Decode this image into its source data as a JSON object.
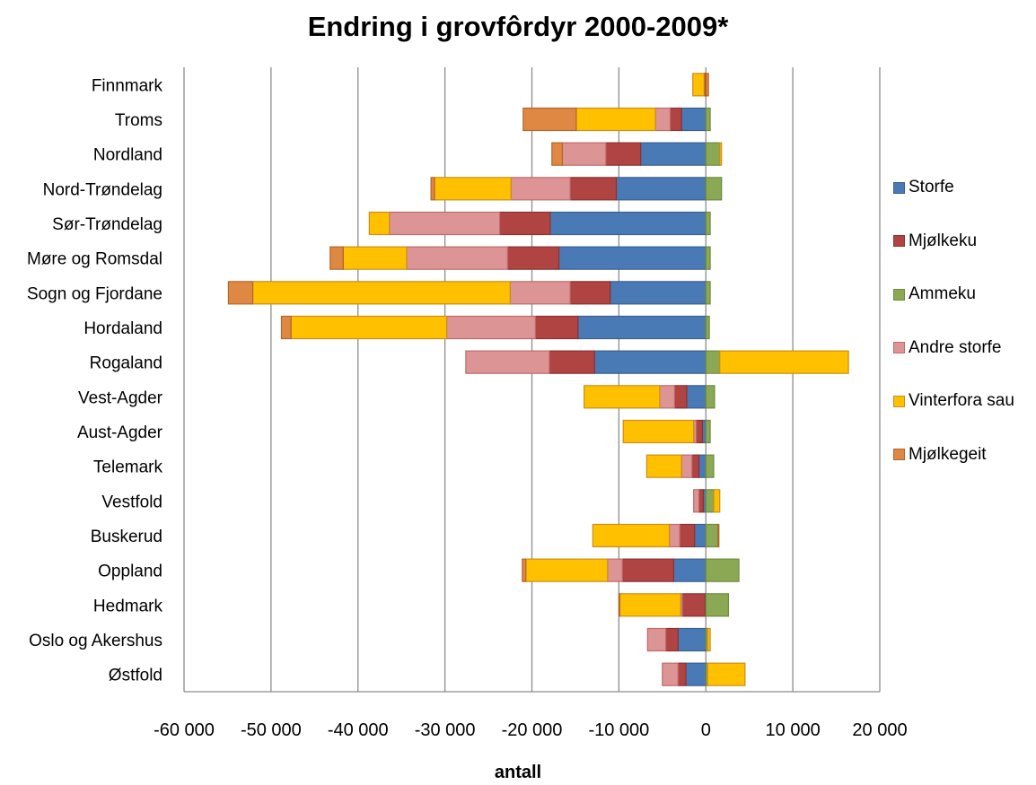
{
  "chart_data": {
    "type": "bar",
    "orientation": "horizontal",
    "stacked": true,
    "title": "Endring i grovfôrdyr 2000-2009*",
    "xlabel": "antall",
    "ylabel": "",
    "xlim": [
      -60000,
      20000
    ],
    "xticks": [
      -60000,
      -50000,
      -40000,
      -30000,
      -20000,
      -10000,
      0,
      10000,
      20000
    ],
    "xtick_labels": [
      "-60 000",
      "-50 000",
      "-40 000",
      "-30 000",
      "-20 000",
      "-10 000",
      "0",
      "10 000",
      "20 000"
    ],
    "grid": "vertical",
    "legend_position": "right",
    "categories": [
      "Finnmark",
      "Troms",
      "Nordland",
      "Nord-Trøndelag",
      "Sør-Trøndelag",
      "Møre og Romsdal",
      "Sogn og Fjordane",
      "Hordaland",
      "Rogaland",
      "Vest-Agder",
      "Aust-Agder",
      "Telemark",
      "Vestfold",
      "Buskerud",
      "Oppland",
      "Hedmark",
      "Oslo og Akershus",
      "Østfold"
    ],
    "series": [
      {
        "name": "Storfe",
        "color": "#4a7ab5",
        "border": "#3a5f8f",
        "values": [
          0,
          -2800,
          -7500,
          -10300,
          -17900,
          -16900,
          -11000,
          -14700,
          -12800,
          -2200,
          -400,
          -800,
          -300,
          -1300,
          -3700,
          -100,
          -3200,
          -2300
        ]
      },
      {
        "name": "Mjølkeku",
        "color": "#b04443",
        "border": "#8c3130",
        "values": [
          -200,
          -1300,
          -4000,
          -5300,
          -5800,
          -5900,
          -4600,
          -4900,
          -5200,
          -1400,
          -700,
          -800,
          -500,
          -1700,
          -5900,
          -2600,
          -1400,
          -900
        ]
      },
      {
        "name": "Ammeku",
        "color": "#8ba954",
        "border": "#6d8a3e",
        "values": [
          0,
          500,
          1600,
          1800,
          500,
          500,
          500,
          400,
          1600,
          1000,
          500,
          900,
          900,
          1400,
          3800,
          2600,
          200,
          200
        ]
      },
      {
        "name": "Andre storfe",
        "color": "#dd9494",
        "border": "#c06a6a",
        "values": [
          0,
          -1700,
          -5000,
          -6800,
          -12700,
          -11600,
          -6900,
          -10200,
          -9600,
          -1700,
          -300,
          -1200,
          -600,
          -1200,
          -1700,
          -200,
          -2100,
          -1800
        ]
      },
      {
        "name": "Vinterfora sau",
        "color": "#ffc000",
        "border": "#c98f1a",
        "values": [
          -1300,
          -9100,
          200,
          -8800,
          -2300,
          -7300,
          -29600,
          -17900,
          14800,
          -8700,
          -8100,
          -4000,
          700,
          -8800,
          -9400,
          -7000,
          300,
          4300
        ]
      },
      {
        "name": "Mjølkegeit",
        "color": "#de8844",
        "border": "#b36628",
        "values": [
          300,
          -6100,
          -1200,
          -400,
          0,
          -1500,
          -2800,
          -1100,
          0,
          0,
          0,
          0,
          0,
          100,
          -400,
          -100,
          0,
          0
        ]
      }
    ]
  }
}
